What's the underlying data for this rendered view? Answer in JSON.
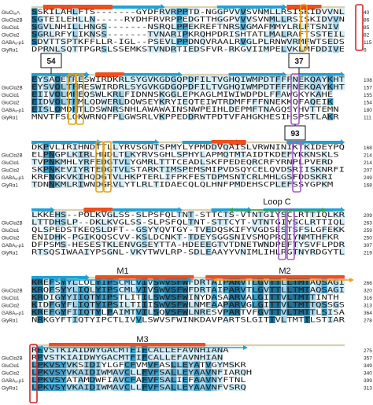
{
  "colors": {
    "shade_dark": "#1e6f94",
    "shade_mid": "#3b9cc6",
    "shade_light": "#9fd1e8",
    "shade_pale": "#d3ecf6",
    "helix": "#f04e1b",
    "strand_arrow": "#1fa2d4",
    "band": "#d9d2b4",
    "box_orange": "#e8a317",
    "box_purple": "#a65bd1",
    "box_red": "#d62626",
    "loop_green": "#2fa84f",
    "m2_orange": "#e8a317"
  },
  "blocks": [
    {
      "rows": [
        {
          "label": "GluClₐᵥᵉᵣ",
          "seq": "SSKILAHLFTS-------GYDFRVRPPTD-NGGPVVVSVNMLLRSISKIDVVNL",
          "num": "40"
        },
        {
          "label": "GluClα2B",
          "seq": "SGTEILEHLLN-----RYDHFRVRPPEDGTTHGGPVVVSVNMLLRSISKIDVVN",
          "num": "86"
        },
        {
          "label": "GluClα1",
          "seq": "SGVLNHILLHNGS-------NSRQLPPEKREFTNRSVGMAFMMYLRLFTSNIV",
          "num": "85"
        },
        {
          "label": "GluClα2",
          "seq": "SGRLRFYLIKNSS-------TVNARIPKRQHPDRISHTATLMALRAFTSSTEIL",
          "num": "82"
        },
        {
          "label": "GABAₐ-ρ1",
          "seq": "SDVTTSPTKFFLLR-IGL--PSEVLPPDNQVRAALRVGLPLRNWVRMFWTSEDS",
          "num": "115"
        },
        {
          "label": "GlyRα1",
          "seq": "DPRNLSQTTPGRSLSSEMKSTVNDRTIEDSFVR-RKGVIIMPELVKLMFDDIVE",
          "num": "6"
        }
      ],
      "callouts": []
    },
    {
      "rows": [
        {
          "label": "",
          "seq": "EYSAOETRESWIRDKRLSYGVKGDGQPDFILTVGHQIWMPDTFFPNEKQAYKHTIDKP",
          "num": "108"
        },
        {
          "label": "GluClα2B",
          "seq": "EYSVOLTFRESWIRDRLSYGVKGDGQPDFILTVGHQIWMPDTFFPNEKQAYKHT",
          "num": "157"
        },
        {
          "label": "GluClα1",
          "seq": "EIIVOLMFEQSWLKRLFIDNNSKGGLEPKAGLMIWIWDPDLFFAWGKYKAHE",
          "num": "155"
        },
        {
          "label": "GluClα2",
          "seq": "EIDVOLTFMLQDWERLDQWSEYKRYIEQTEIWTRDMFFFFNNEKKQFAQEIK",
          "num": "154"
        },
        {
          "label": "GABAₐ-ρ1",
          "seq": "EISLOMDFTLDSWNRSNHLAWAWAINSNWPEIHLDEPMFTNAGQSYHVTTEMN",
          "num": "180"
        },
        {
          "label": "GlyRα1",
          "seq": "MNVTFSLQKWRNQFPLGWSRLVKPPEDDRWTPDTVFAHGKHESIHSPSTLAKR",
          "num": "111"
        }
      ],
      "callouts": [
        "54",
        "37"
      ]
    },
    {
      "rows": [
        {
          "label": "",
          "seq": "DKPVLIRIHNDTTLLYRVSGNTSPMYLYPMDDVQAISLVRWNINIKTKIDEYPQK",
          "num": "168"
        },
        {
          "label": "GluClα2B",
          "seq": "ELPNGPLKIRLHNDLTLKYRVSGHLSPHYLAPMQTMTAIDTKDEFYKKNSKLS",
          "num": "214"
        },
        {
          "label": "GluClα1",
          "seq": "TVPNKMHLYRFEDGTVLYGMRLTTTCEADLSKFPEDEQRCRFYRNPLPVERD",
          "num": "214"
        },
        {
          "label": "GluClα2",
          "seq": "SKPNKEVIYRTEDGTVLSTARKTIMSPEMSMIPVDSQYCELQVDSRIISKNRFI",
          "num": "207"
        },
        {
          "label": "GABAₐ-ρ1",
          "seq": "KRFNGKVKIHQDGTVLHKPTERLIFPKFESTDPMSNTCRLMHLGSFDDSKRI",
          "num": "249"
        },
        {
          "label": "GlyRα1",
          "seq": "TDNNKMLRIWNDGRVLYTLRLTIDAECQLQLHNFPMDEHSCPLEFSSYGPKM",
          "num": "168"
        }
      ],
      "callouts": [
        "93"
      ]
    },
    {
      "rows": [
        {
          "label": "",
          "seq": "LKKEHS--POLKVGLSS-SLPSFQLTNT-STTCTS-VTNTGIYSCLRTTIQLKREF",
          "num": "209"
        },
        {
          "label": "GluClα2B",
          "seq": "LTTDHSLP--DKLKVGLSS-SLPSFQLTNT-STTCYT-VTNTGIYSCLRTTIQL",
          "num": "263"
        },
        {
          "label": "GluClα1",
          "seq": "QLSPEDSTKEQSLDFT--GSYYQVTGY-TVEDQSKIFYVGDSESTSFSLGFEKK",
          "num": "259"
        },
        {
          "label": "GluClα2",
          "seq": "ENIDHK-PGIKQQSCVV-KSLDCNKT-TDEYSGGSNIVSMQPRQIYNMTHFKR",
          "num": "250"
        },
        {
          "label": "GABAₐ-ρ1",
          "seq": "DFPSMS-HESESTKLENVGSEYTTA-HDEEEGTVTDNETWNDPEFTYSVFLPDRI",
          "num": "307"
        },
        {
          "label": "GlyRα1",
          "seq": "RTSQSIWAAIYPSGNL-VKYTWVLRP-SDLEAAYYVNIMLIHLRGTNYRDGYTL",
          "num": "219"
        }
      ],
      "callouts": []
    },
    {
      "rows": [
        {
          "label": "",
          "seq": "KREFSYYLLOLYIPSCMLVIVSWVSFWFDRTAIPARVTLGVTTLLTMTAQSAGINS",
          "num": "266"
        },
        {
          "label": "GluClα2B",
          "seq": "KRQFSYYLIQLYIPSCMLVIVSWVSFWFDRTAIPARVTLGVTTLLTMTAQSAGI",
          "num": "320"
        },
        {
          "label": "GluClα1",
          "seq": "KRDIGYYIIQTYIPSTLITILSWVSFWINYDASAARVALGITTVLTMTTINTH",
          "num": "316"
        },
        {
          "label": "GluClα2",
          "seq": "KIDFGYFLIQTYIPSILTIIISWVSFWLNMEAAPARVGLGITTVLTMTTQSSGSR",
          "num": "313"
        },
        {
          "label": "GABAₐ-ρ1",
          "seq": "KREFGYFIIQTYLPAIMTVILSQVSFWLNRESVPARTVFGVTTVLTMTTLSISA",
          "num": "364"
        },
        {
          "label": "GlyRα1",
          "seq": "NRKGYFTIQTYIPCTLIVVLSWVSFWINKDAVPARTSLGITTVLTMTTLSTIAR",
          "num": "278"
        }
      ],
      "callouts": []
    },
    {
      "rows": [
        {
          "label": "",
          "seq": "RPVSTKIAIDWYGACMTFIFCALLEFAVNHIANA",
          "num": "275"
        },
        {
          "label": "GluClα2B",
          "seq": "RPVSTKIAIDWYGACMTFIFCALLEFAVNHIAN",
          "num": "357"
        },
        {
          "label": "GluClα1",
          "seq": "LPKVSYVKSIDIYLGFCFVMVFASLLEYATVGYMSKR",
          "num": "349"
        },
        {
          "label": "GluClα2",
          "seq": "LPKVSYVKAIDIWMAVCLLFVFSALLEYAAVNFIARQH",
          "num": "340"
        },
        {
          "label": "GABAₐ-ρ1",
          "seq": "LPKVSYATAMDWFIAVCFAFVFSALIEFAAVNYFTNL",
          "num": "399"
        },
        {
          "label": "GlyRα1",
          "seq": "LPKVSYVKAIDIWMAVCLLFVFSALLEYAAVNFVSRQ",
          "num": "313"
        }
      ],
      "callouts": []
    }
  ],
  "annotations": {
    "loop_c": "Loop C",
    "m1": "M1",
    "m2": "M2",
    "m3": "M3"
  }
}
